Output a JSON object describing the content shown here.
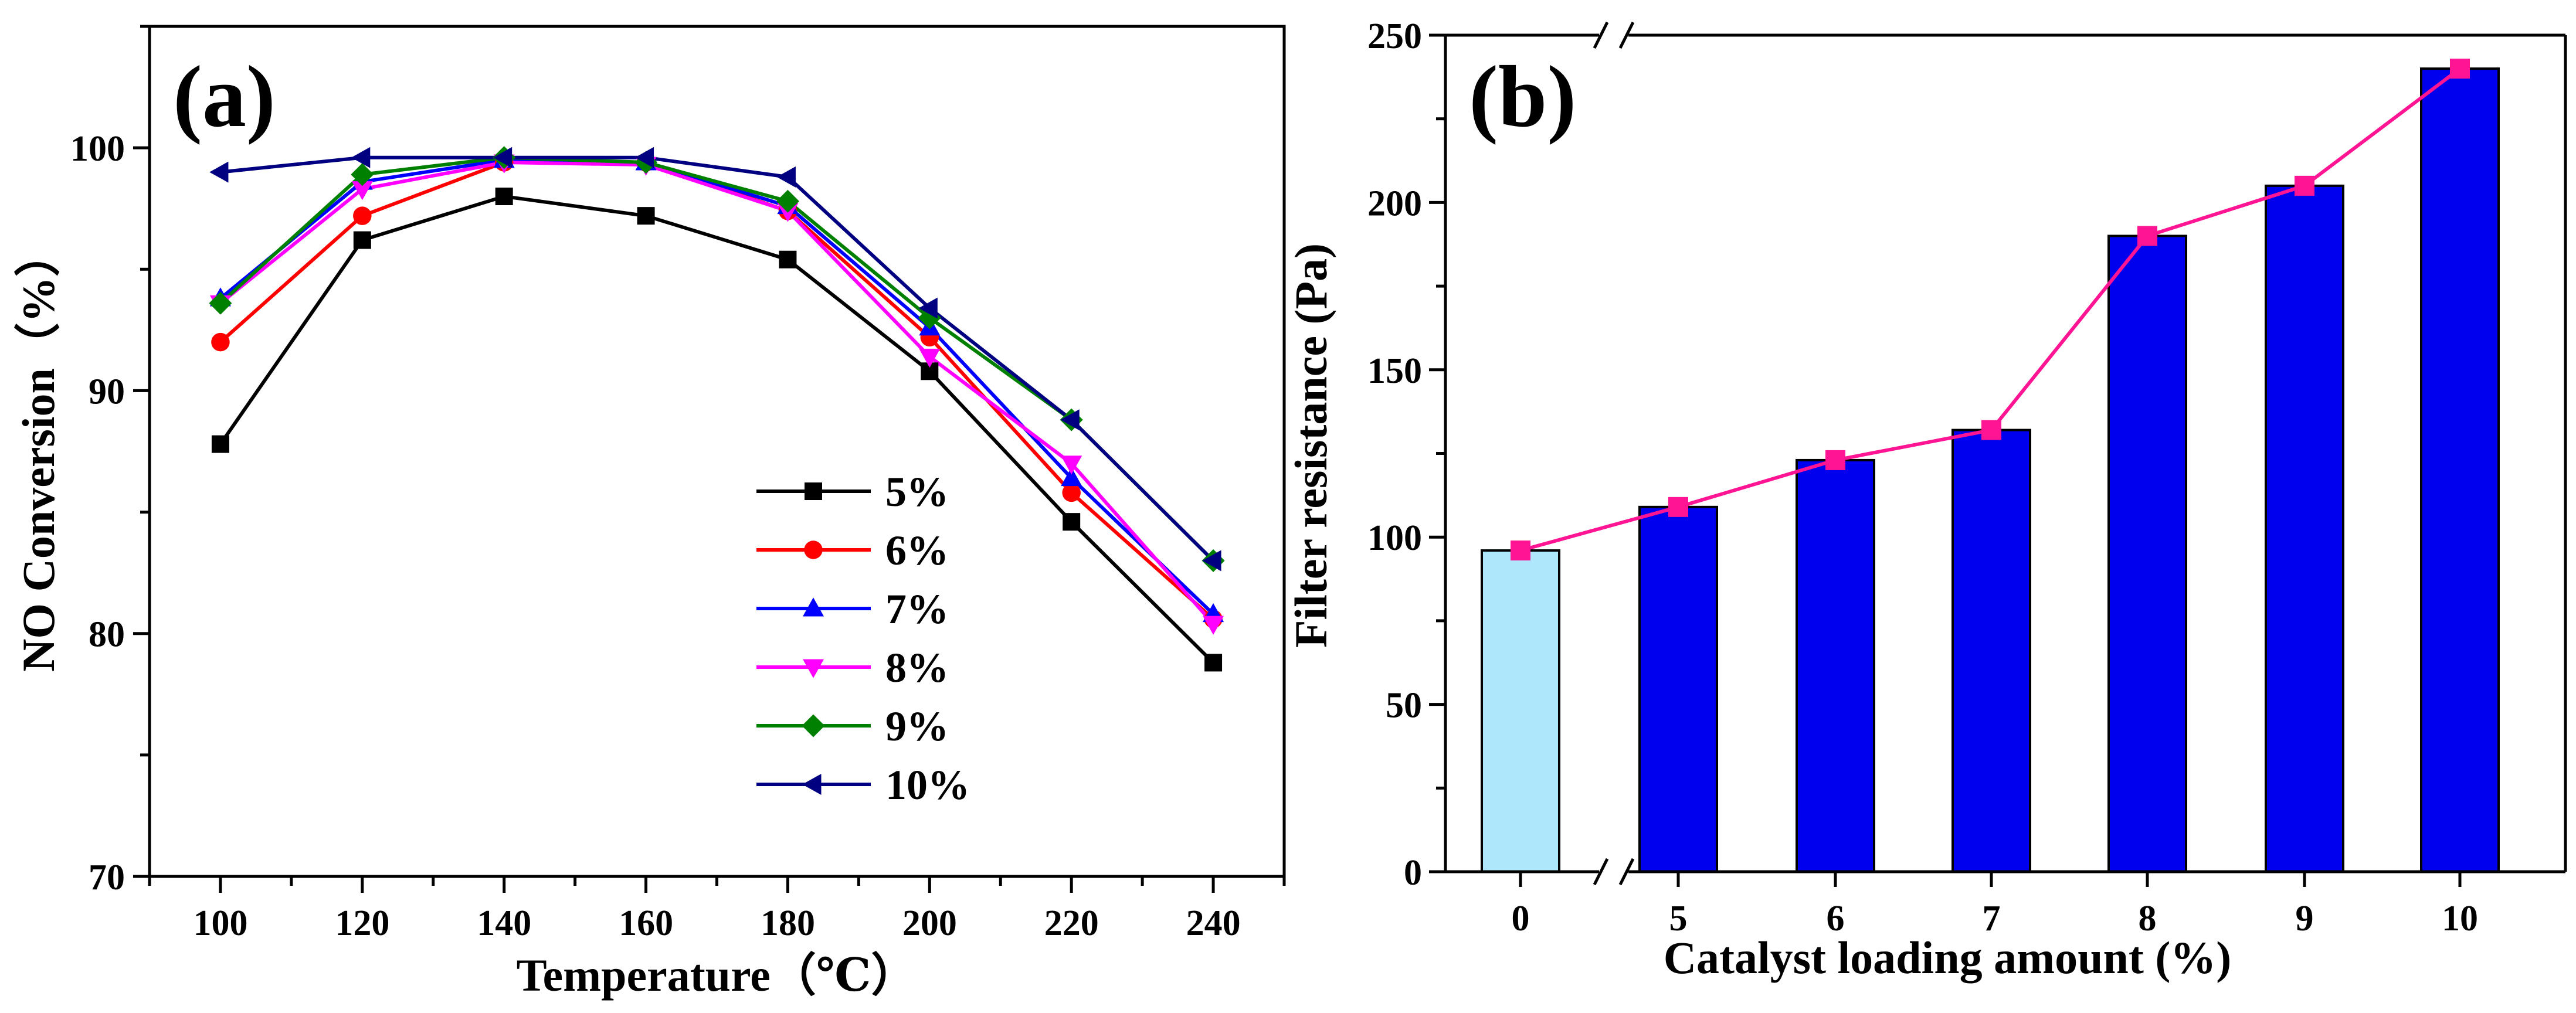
{
  "chart_data": [
    {
      "panel": "(a)",
      "type": "line",
      "xlabel": "Temperature（℃）",
      "ylabel": "NO Conversion（%）",
      "x": [
        100,
        120,
        140,
        160,
        180,
        200,
        220,
        240
      ],
      "xlim": [
        90,
        250
      ],
      "ylim": [
        70,
        105
      ],
      "xticks": [
        "100",
        "120",
        "140",
        "160",
        "180",
        "200",
        "220",
        "240"
      ],
      "yticks": [
        "70",
        "80",
        "90",
        "100"
      ],
      "legend_position": "lower-right",
      "series": [
        {
          "name": "5%",
          "color": "#000000",
          "marker": "square",
          "values": [
            87.8,
            96.2,
            98.0,
            97.2,
            95.4,
            90.8,
            84.6,
            78.8
          ]
        },
        {
          "name": "6%",
          "color": "#ff0000",
          "marker": "circle",
          "values": [
            92.0,
            97.2,
            99.4,
            99.4,
            97.4,
            92.2,
            85.8,
            80.6
          ]
        },
        {
          "name": "7%",
          "color": "#0000ff",
          "marker": "triangle-up",
          "values": [
            93.8,
            98.6,
            99.5,
            99.4,
            97.6,
            92.6,
            86.4,
            80.8
          ]
        },
        {
          "name": "8%",
          "color": "#ff00ff",
          "marker": "triangle-down",
          "values": [
            93.6,
            98.3,
            99.4,
            99.3,
            97.4,
            91.4,
            87.0,
            80.4
          ]
        },
        {
          "name": "9%",
          "color": "#008000",
          "marker": "diamond",
          "values": [
            93.6,
            98.9,
            99.6,
            99.4,
            97.8,
            93.0,
            88.8,
            83.0
          ]
        },
        {
          "name": "10%",
          "color": "#000080",
          "marker": "triangle-left",
          "values": [
            99.0,
            99.6,
            99.6,
            99.6,
            98.8,
            93.4,
            88.8,
            83.0
          ]
        }
      ]
    },
    {
      "panel": "(b)",
      "type": "bar",
      "xlabel": "Catalyst loading amount (%)",
      "ylabel": "Filter resistance (Pa)",
      "categories": [
        "0",
        "5",
        "6",
        "7",
        "8",
        "9",
        "10"
      ],
      "values": [
        96,
        109,
        123,
        132,
        190,
        205,
        240
      ],
      "line_values": [
        96,
        109,
        123,
        132,
        190,
        205,
        240
      ],
      "ylim": [
        0,
        250
      ],
      "yticks": [
        "0",
        "50",
        "100",
        "150",
        "200",
        "250"
      ],
      "axis_break": "between 0 and 5",
      "bar_colors": [
        "#aee6fb",
        "#0000ee",
        "#0000ee",
        "#0000ee",
        "#0000ee",
        "#0000ee",
        "#0000ee"
      ],
      "line_color": "#ff1493"
    }
  ]
}
